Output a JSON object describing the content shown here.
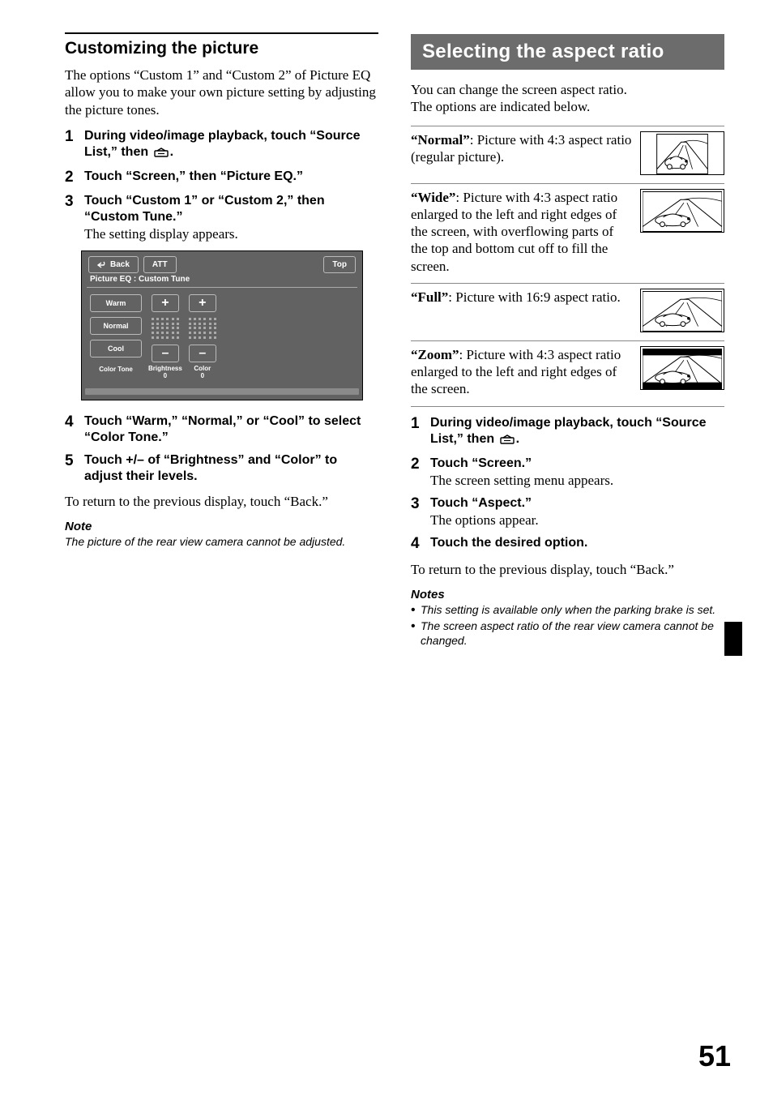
{
  "left": {
    "heading": "Customizing the picture",
    "intro": "The options “Custom 1” and “Custom 2” of Picture EQ allow you to make your own picture setting by adjusting the picture tones.",
    "steps": [
      {
        "n": "1",
        "bold": "During video/image playback, touch “Source List,” then ",
        "bold_suffix": "."
      },
      {
        "n": "2",
        "bold": "Touch “Screen,” then “Picture EQ.”"
      },
      {
        "n": "3",
        "bold": "Touch “Custom 1” or “Custom 2,” then “Custom Tune.”",
        "plain": "The setting display appears."
      }
    ],
    "panel": {
      "title": "Picture EQ : Custom Tune",
      "btn_back": "Back",
      "btn_att": "ATT",
      "btn_top": "Top",
      "opts": [
        "Warm",
        "Normal",
        "Cool"
      ],
      "colA_label": "Color Tone",
      "level1_label_a": "Brightness",
      "level1_label_b": "0",
      "level2_label_a": "Color",
      "level2_label_b": "0",
      "plus": "+",
      "minus": "–",
      "bar_rows": 5,
      "bar_cols": 6,
      "bg_color": "#626262",
      "fg_color": "#ffffff",
      "border_color": "#bbbbbb"
    },
    "steps2": [
      {
        "n": "4",
        "bold": "Touch “Warm,” “Normal,” or “Cool” to select “Color Tone.”"
      },
      {
        "n": "5",
        "bold": "Touch +/– of “Brightness” and “Color” to adjust their levels."
      }
    ],
    "return": "To return to the previous display, touch “Back.”",
    "note_head": "Note",
    "note": "The picture of the rear view camera cannot be adjusted."
  },
  "right": {
    "banner": "Selecting the aspect ratio",
    "intro1": "You can change the screen aspect ratio.",
    "intro2": "The options are indicated below.",
    "options": [
      {
        "label": "“Normal”",
        "text": ": Picture with 4:3 aspect ratio (regular picture).",
        "thumb": "normal"
      },
      {
        "label": "“Wide”",
        "text": ": Picture with 4:3 aspect ratio enlarged to the left and right edges of the screen, with overflowing parts of the top and bottom cut off to fill the screen.",
        "thumb": "wide"
      },
      {
        "label": "“Full”",
        "text": ": Picture with 16:9 aspect ratio.",
        "thumb": "full"
      },
      {
        "label": "“Zoom”",
        "text": ": Picture with 4:3 aspect ratio enlarged to the left and right edges of the screen.",
        "thumb": "zoom"
      }
    ],
    "steps": [
      {
        "n": "1",
        "bold": "During video/image playback, touch “Source List,” then ",
        "bold_suffix": "."
      },
      {
        "n": "2",
        "bold": "Touch “Screen.”",
        "plain": "The screen setting menu appears."
      },
      {
        "n": "3",
        "bold": "Touch “Aspect.”",
        "plain": "The options appear."
      },
      {
        "n": "4",
        "bold": "Touch the desired option."
      }
    ],
    "return": "To return to the previous display, touch “Back.”",
    "notes_head": "Notes",
    "notes": [
      "This setting is available only when the parking brake is set.",
      "The screen aspect ratio of the rear view camera cannot be changed."
    ]
  },
  "page_number": "51",
  "thumbs": {
    "stroke": "#000000",
    "fill": "#ffffff",
    "normal_inner_w": 64,
    "wide_inner_w": 100,
    "full_inner_w": 100,
    "zoom_inner_w": 100,
    "zoom_letterbox": true
  }
}
